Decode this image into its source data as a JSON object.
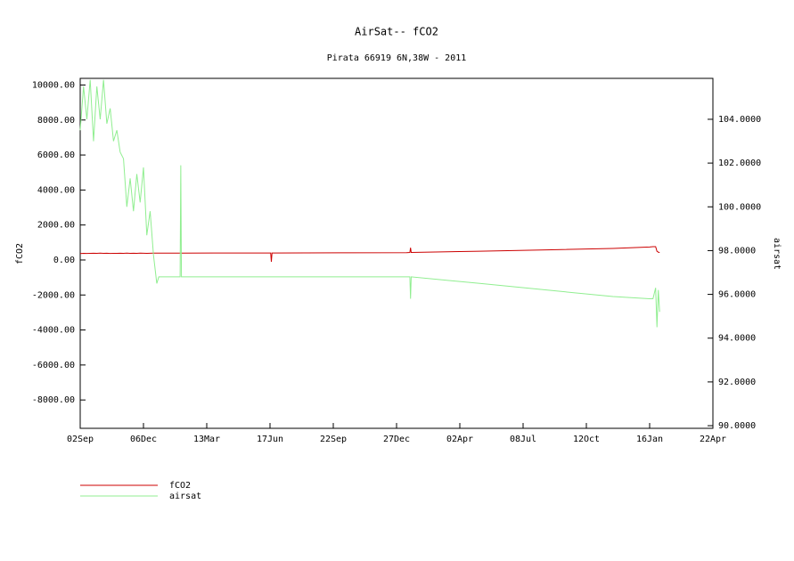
{
  "chart_data": {
    "type": "line",
    "title": "AirSat-- fCO2",
    "subtitle": "Pirata 66919 6N,38W - 2011",
    "ylabel": "fCO2",
    "y2label": "airsat",
    "x": [
      0,
      5,
      10,
      15,
      20,
      25,
      30,
      35,
      40,
      45,
      50,
      55,
      60,
      65,
      70,
      75,
      80,
      85,
      90,
      95,
      100,
      105,
      110,
      115,
      118,
      150,
      151,
      152,
      200,
      286,
      287,
      288,
      400,
      490,
      495,
      496,
      497,
      600,
      700,
      800,
      855,
      860,
      864,
      866,
      868,
      870
    ],
    "series": [
      {
        "name": "fCO2",
        "color": "#cc0000",
        "axis": "y",
        "values": [
          370,
          380,
          375,
          380,
          385,
          380,
          390,
          380,
          385,
          375,
          380,
          380,
          385,
          380,
          390,
          380,
          385,
          380,
          390,
          385,
          380,
          385,
          390,
          390,
          390,
          395,
          395,
          395,
          400,
          400,
          -100,
          400,
          410,
          420,
          430,
          700,
          430,
          500,
          580,
          660,
          740,
          760,
          760,
          500,
          450,
          420
        ]
      },
      {
        "name": "airsat",
        "color": "#90ee90",
        "axis": "y2",
        "values": [
          103.5,
          105.5,
          104,
          105.8,
          103,
          105.5,
          104,
          105.8,
          103.8,
          104.5,
          103,
          103.5,
          102.5,
          102.2,
          100,
          101.3,
          99.8,
          101.5,
          100.2,
          101.8,
          98.7,
          99.8,
          97.8,
          96.5,
          96.8,
          96.8,
          101.9,
          96.8,
          96.8,
          96.8,
          96.8,
          96.8,
          96.8,
          96.8,
          96.8,
          95.8,
          96.8,
          96.5,
          96.2,
          95.9,
          95.8,
          95.8,
          96.3,
          94.5,
          96.2,
          95.2
        ]
      }
    ],
    "xlim": [
      0,
      950
    ],
    "xticks": [
      {
        "value": 0,
        "label": "02Sep"
      },
      {
        "value": 95,
        "label": "06Dec"
      },
      {
        "value": 190,
        "label": "13Mar"
      },
      {
        "value": 285,
        "label": "17Jun"
      },
      {
        "value": 380,
        "label": "22Sep"
      },
      {
        "value": 475,
        "label": "27Dec"
      },
      {
        "value": 570,
        "label": "02Apr"
      },
      {
        "value": 665,
        "label": "08Jul"
      },
      {
        "value": 760,
        "label": "12Oct"
      },
      {
        "value": 855,
        "label": "16Jan"
      },
      {
        "value": 950,
        "label": "22Apr"
      }
    ],
    "ylim": [
      -9620,
      10380
    ],
    "yticks": [
      {
        "value": 10000,
        "label": "10000.00"
      },
      {
        "value": 8000,
        "label": "8000.00"
      },
      {
        "value": 6000,
        "label": "6000.00"
      },
      {
        "value": 4000,
        "label": "4000.00"
      },
      {
        "value": 2000,
        "label": "2000.00"
      },
      {
        "value": 0,
        "label": "0.00"
      },
      {
        "value": -2000,
        "label": "-2000.00"
      },
      {
        "value": -4000,
        "label": "-4000.00"
      },
      {
        "value": -6000,
        "label": "-6000.00"
      },
      {
        "value": -8000,
        "label": "-8000.00"
      }
    ],
    "y2lim": [
      89.88,
      105.87
    ],
    "y2ticks": [
      {
        "value": 104,
        "label": "104.0000"
      },
      {
        "value": 102,
        "label": "102.0000"
      },
      {
        "value": 100,
        "label": "100.0000"
      },
      {
        "value": 98,
        "label": "98.0000"
      },
      {
        "value": 96,
        "label": "96.0000"
      },
      {
        "value": 94,
        "label": "94.0000"
      },
      {
        "value": 92,
        "label": "92.0000"
      },
      {
        "value": 90,
        "label": "90.0000"
      }
    ]
  }
}
